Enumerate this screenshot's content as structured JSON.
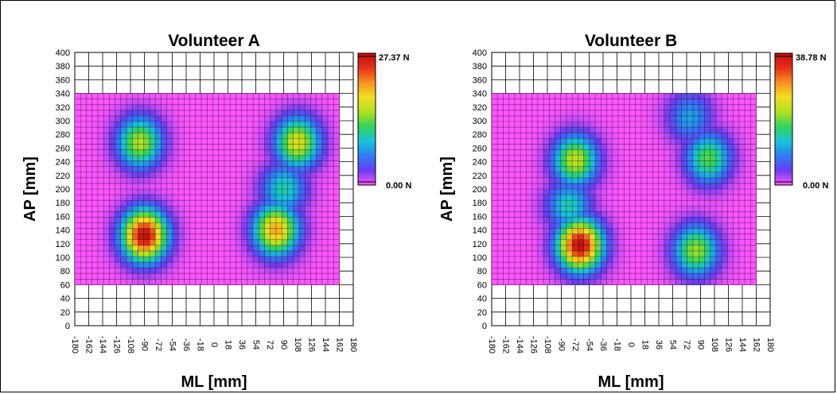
{
  "chart_data": [
    {
      "type": "heatmap",
      "title": "Volunteer A",
      "xlabel": "ML [mm]",
      "ylabel": "AP [mm]",
      "xlim": [
        -180,
        180
      ],
      "ylim": [
        0,
        400
      ],
      "x_ticks": [
        -180,
        -162,
        -144,
        -126,
        -108,
        -90,
        -72,
        -54,
        -36,
        -18,
        0,
        18,
        36,
        54,
        72,
        90,
        108,
        126,
        144,
        162,
        180
      ],
      "y_ticks": [
        0,
        20,
        40,
        60,
        80,
        100,
        120,
        140,
        160,
        180,
        200,
        220,
        240,
        260,
        280,
        300,
        320,
        340,
        360,
        380,
        400
      ],
      "sensor_area": {
        "ml": [
          -180,
          162
        ],
        "ap": [
          60,
          340
        ]
      },
      "colorbar": {
        "min": 0,
        "max": 27.37,
        "min_label": "0.00 N",
        "max_label": "27.37 N",
        "colors": [
          "#ff55ff",
          "#6a3df0",
          "#2f7cf5",
          "#18c4d8",
          "#34d45a",
          "#b0e020",
          "#f0e020",
          "#f89020",
          "#e83018",
          "#c01010"
        ]
      },
      "pressure_regions": [
        {
          "region": "left forefoot",
          "ml": -96,
          "ap": 268,
          "peak_n": 15.6
        },
        {
          "region": "left heel",
          "ml": -90,
          "ap": 132,
          "peak_n": 27.37
        },
        {
          "region": "right forefoot",
          "ml": 108,
          "ap": 268,
          "peak_n": 17.3
        },
        {
          "region": "right midfoot",
          "ml": 90,
          "ap": 200,
          "peak_n": 10.5
        },
        {
          "region": "right heel",
          "ml": 80,
          "ap": 140,
          "peak_n": 20.5
        }
      ]
    },
    {
      "type": "heatmap",
      "title": "Volunteer B",
      "xlabel": "ML [mm]",
      "ylabel": "AP [mm]",
      "xlim": [
        -180,
        180
      ],
      "ylim": [
        0,
        400
      ],
      "x_ticks": [
        -180,
        -162,
        -144,
        -126,
        -108,
        -90,
        -72,
        -54,
        -36,
        -18,
        0,
        18,
        36,
        54,
        72,
        90,
        108,
        126,
        144,
        162,
        180
      ],
      "y_ticks": [
        0,
        20,
        40,
        60,
        80,
        100,
        120,
        140,
        160,
        180,
        200,
        220,
        240,
        260,
        280,
        300,
        320,
        340,
        360,
        380,
        400
      ],
      "sensor_area": {
        "ml": [
          -180,
          162
        ],
        "ap": [
          60,
          340
        ]
      },
      "colorbar": {
        "min": 0,
        "max": 38.78,
        "min_label": "0.00 N",
        "max_label": "38.78 N",
        "colors": [
          "#ff55ff",
          "#6a3df0",
          "#2f7cf5",
          "#18c4d8",
          "#34d45a",
          "#b0e020",
          "#f0e020",
          "#f89020",
          "#e83018",
          "#c01010"
        ]
      },
      "pressure_regions": [
        {
          "region": "left forefoot",
          "ml": -72,
          "ap": 242,
          "peak_n": 23.0
        },
        {
          "region": "left midfoot",
          "ml": -80,
          "ap": 175,
          "peak_n": 14.5
        },
        {
          "region": "left heel",
          "ml": -66,
          "ap": 118,
          "peak_n": 38.78
        },
        {
          "region": "right forefoot",
          "ml": 100,
          "ap": 245,
          "peak_n": 18.5
        },
        {
          "region": "right toes",
          "ml": 76,
          "ap": 305,
          "peak_n": 11.0
        },
        {
          "region": "right heel",
          "ml": 84,
          "ap": 110,
          "peak_n": 21.0
        }
      ]
    }
  ]
}
